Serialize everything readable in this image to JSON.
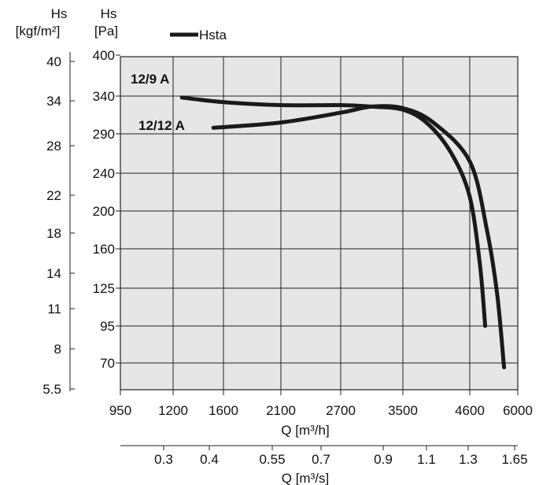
{
  "chart_data": {
    "type": "line",
    "legend": {
      "label": "Hsta",
      "placement": "top-left"
    },
    "y_axis_left_outer": {
      "label_line1": "Hs",
      "label_line2": "[kgf/m²]",
      "ticks": [
        "40",
        "34",
        "28",
        "22",
        "18",
        "14",
        "11",
        "8",
        "5.5"
      ]
    },
    "y_axis_left_inner": {
      "label_line1": "Hs",
      "label_line2": "[Pa]",
      "ticks": [
        "400",
        "340",
        "290",
        "240",
        "200",
        "160",
        "125",
        "95",
        "70"
      ]
    },
    "x_axis_main": {
      "label": "Q [m³/h]",
      "ticks": [
        "950",
        "1200",
        "1600",
        "2100",
        "2700",
        "3500",
        "4600",
        "6000"
      ]
    },
    "x_axis_secondary": {
      "label": "Q [m³/s]",
      "ticks": [
        "0.3",
        "0.4",
        "0.55",
        "0.7",
        "0.9",
        "1.1",
        "1.3",
        "1.65"
      ]
    },
    "grid": true,
    "background_color": "#e6e6e6",
    "line_color": "#1a1a1a",
    "series": [
      {
        "name": "12/9 A",
        "points": [
          [
            1270,
            338
          ],
          [
            1600,
            332
          ],
          [
            2100,
            328
          ],
          [
            2700,
            328
          ],
          [
            3100,
            326
          ],
          [
            3500,
            322
          ],
          [
            3900,
            304
          ],
          [
            4300,
            265
          ],
          [
            4600,
            215
          ],
          [
            4900,
            145
          ],
          [
            5050,
            95
          ]
        ]
      },
      {
        "name": "12/12 A",
        "points": [
          [
            1520,
            298
          ],
          [
            2100,
            305
          ],
          [
            2700,
            318
          ],
          [
            3100,
            326
          ],
          [
            3500,
            324
          ],
          [
            4000,
            305
          ],
          [
            4600,
            255
          ],
          [
            5100,
            180
          ],
          [
            5400,
            120
          ],
          [
            5600,
            67
          ]
        ]
      }
    ]
  }
}
